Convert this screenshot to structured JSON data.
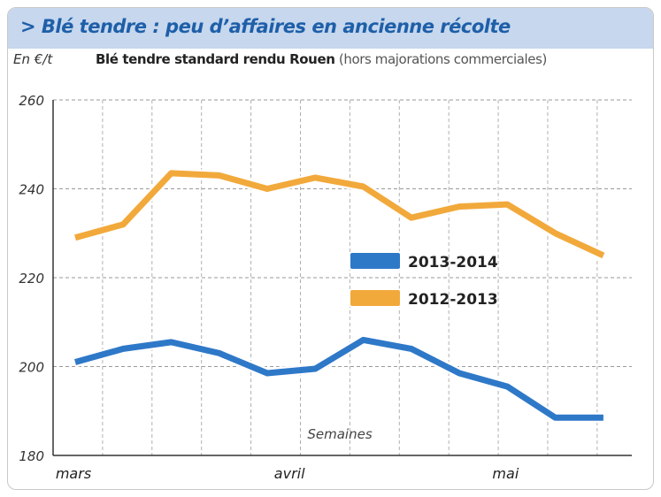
{
  "title": "> Blé tendre : peu d’affaires en ancienne récolte",
  "unit_label": "En €/t",
  "subtitle_main": "Blé tendre standard rendu Rouen",
  "subtitle_note": "(hors majorations commerciales)",
  "chart_data": {
    "type": "line",
    "xlabel": "Semaines",
    "ylabel": "En €/t",
    "ylim": [
      180,
      260
    ],
    "yticks": [
      180,
      200,
      220,
      240,
      260
    ],
    "x_week_range": [
      0,
      11.5
    ],
    "month_labels": [
      {
        "label": "mars",
        "week": 0
      },
      {
        "label": "avril",
        "week": 4.5
      },
      {
        "label": "mai",
        "week": 9
      }
    ],
    "grid": true,
    "legend_position": "center-right",
    "series": [
      {
        "name": "2013-2014",
        "color": "#2e78c8",
        "x": [
          0,
          1,
          2,
          3,
          4,
          5,
          6,
          7,
          8,
          9,
          10,
          11
        ],
        "values": [
          201,
          204,
          205.5,
          203,
          198.5,
          199.5,
          206,
          204,
          198.5,
          195.5,
          188.5,
          188.5
        ]
      },
      {
        "name": "2012-2013",
        "color": "#f2a93b",
        "x": [
          0,
          1,
          2,
          3,
          4,
          5,
          6,
          7,
          8,
          9,
          10,
          11
        ],
        "values": [
          229,
          232,
          243.5,
          243,
          240,
          242.5,
          240.5,
          233.5,
          236,
          236.5,
          230,
          225
        ]
      }
    ]
  }
}
